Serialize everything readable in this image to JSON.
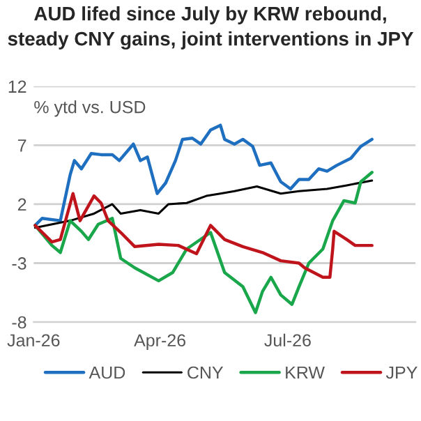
{
  "chart_data": {
    "type": "line",
    "title": "AUD lifed since July by KRW rebound,\nsteady CNY gains, joint interventions in JPY",
    "ylabel": "% ytd vs. USD",
    "xlim": [
      "2026-01-01",
      "2026-09-30"
    ],
    "xticks": [
      {
        "value": "2026-01-01",
        "label": "Jan-26"
      },
      {
        "value": "2026-04-01",
        "label": "Apr-26"
      },
      {
        "value": "2026-07-01",
        "label": "Jul-26"
      }
    ],
    "ylim": [
      -8,
      12
    ],
    "yticks": [
      -8,
      -3,
      2,
      7,
      12
    ],
    "grid": "y",
    "legend": "bottom",
    "line_style": "solid",
    "marker": "none",
    "series": [
      {
        "name": "AUD",
        "color": "#1f6fc0",
        "x": [
          "2026-01-02",
          "2026-01-07",
          "2026-01-20",
          "2026-01-27",
          "2026-01-30",
          "2026-02-04",
          "2026-02-11",
          "2026-02-18",
          "2026-02-26",
          "2026-03-03",
          "2026-03-13",
          "2026-03-18",
          "2026-03-23",
          "2026-03-30",
          "2026-04-05",
          "2026-04-12",
          "2026-04-17",
          "2026-04-24",
          "2026-04-30",
          "2026-05-07",
          "2026-05-14",
          "2026-05-17",
          "2026-05-24",
          "2026-05-30",
          "2026-06-06",
          "2026-06-11",
          "2026-06-19",
          "2026-06-26",
          "2026-07-03",
          "2026-07-09",
          "2026-07-16",
          "2026-07-23",
          "2026-07-29",
          "2026-08-05",
          "2026-08-15",
          "2026-08-22",
          "2026-08-30"
        ],
        "values": [
          0.2,
          0.8,
          0.6,
          4.5,
          5.7,
          5.0,
          6.3,
          6.2,
          6.2,
          5.7,
          7.1,
          5.7,
          6.0,
          2.9,
          3.8,
          5.7,
          7.5,
          7.6,
          7.1,
          8.3,
          8.7,
          7.5,
          7.1,
          7.5,
          6.9,
          5.3,
          5.5,
          3.9,
          3.3,
          4.1,
          4.1,
          5.0,
          4.8,
          5.3,
          5.9,
          6.9,
          7.5
        ]
      },
      {
        "name": "CNY",
        "color": "#000000",
        "x": [
          "2026-01-02",
          "2026-01-27",
          "2026-02-13",
          "2026-02-26",
          "2026-03-04",
          "2026-03-18",
          "2026-03-31",
          "2026-04-07",
          "2026-04-20",
          "2026-05-04",
          "2026-05-14",
          "2026-05-24",
          "2026-06-09",
          "2026-06-26",
          "2026-07-09",
          "2026-07-29",
          "2026-08-12",
          "2026-08-30"
        ],
        "values": [
          0.0,
          0.6,
          1.2,
          2.0,
          1.2,
          1.5,
          1.2,
          2.0,
          2.1,
          2.7,
          2.9,
          3.1,
          3.5,
          2.9,
          3.1,
          3.3,
          3.6,
          4.0
        ]
      },
      {
        "name": "KRW",
        "color": "#1aa64a",
        "x": [
          "2026-01-02",
          "2026-01-14",
          "2026-01-20",
          "2026-01-27",
          "2026-02-04",
          "2026-02-09",
          "2026-02-16",
          "2026-02-26",
          "2026-03-04",
          "2026-03-14",
          "2026-03-31",
          "2026-04-10",
          "2026-04-20",
          "2026-05-07",
          "2026-05-17",
          "2026-05-30",
          "2026-06-08",
          "2026-06-13",
          "2026-06-19",
          "2026-06-26",
          "2026-07-04",
          "2026-07-09",
          "2026-07-16",
          "2026-07-26",
          "2026-08-02",
          "2026-08-10",
          "2026-08-18",
          "2026-08-22",
          "2026-08-30"
        ],
        "values": [
          0.2,
          -1.5,
          -2.1,
          0.6,
          -0.3,
          -1.0,
          0.3,
          0.8,
          -2.6,
          -3.4,
          -4.5,
          -3.8,
          -1.8,
          -0.4,
          -3.8,
          -5.0,
          -7.2,
          -5.4,
          -4.2,
          -5.7,
          -6.5,
          -5.0,
          -3.0,
          -1.8,
          0.6,
          2.3,
          2.1,
          3.9,
          4.7
        ]
      },
      {
        "name": "JPY",
        "color": "#c0141c",
        "x": [
          "2026-01-02",
          "2026-01-14",
          "2026-01-20",
          "2026-01-29",
          "2026-02-03",
          "2026-02-13",
          "2026-02-18",
          "2026-02-23",
          "2026-03-04",
          "2026-03-14",
          "2026-03-31",
          "2026-04-14",
          "2026-04-27",
          "2026-05-07",
          "2026-05-17",
          "2026-05-30",
          "2026-06-13",
          "2026-06-26",
          "2026-07-09",
          "2026-07-13",
          "2026-07-26",
          "2026-07-31",
          "2026-08-02",
          "2026-08-03",
          "2026-08-12",
          "2026-08-18",
          "2026-08-30"
        ],
        "values": [
          0.2,
          -1.2,
          -1.0,
          2.9,
          0.6,
          2.7,
          2.1,
          0.6,
          -0.4,
          -1.6,
          -1.4,
          -1.5,
          -2.2,
          0.2,
          -1.0,
          -1.6,
          -2.1,
          -2.8,
          -3.0,
          -3.4,
          -4.2,
          -4.2,
          -1.8,
          -0.3,
          -1.0,
          -1.5,
          -1.5
        ]
      }
    ]
  }
}
